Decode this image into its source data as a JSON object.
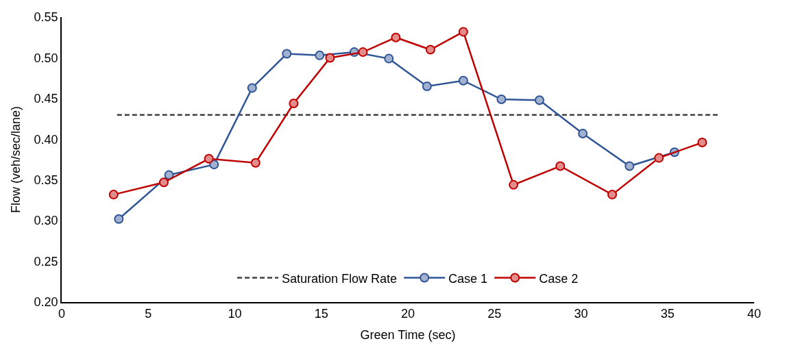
{
  "chart_data": {
    "type": "line",
    "xlabel": "Green Time (sec)",
    "ylabel": "Flow (veh/sec/lane)",
    "xlim": [
      0,
      40
    ],
    "xticks": [
      0,
      5,
      10,
      15,
      20,
      25,
      30,
      35,
      40
    ],
    "ylim": [
      0.2,
      0.55
    ],
    "yticks": [
      {
        "value": 0.2,
        "label": "0.20"
      },
      {
        "value": 0.25,
        "label": "0.25"
      },
      {
        "value": 0.3,
        "label": "0.30"
      },
      {
        "value": 0.35,
        "label": "0.35"
      },
      {
        "value": 0.4,
        "label": "0.40"
      },
      {
        "value": 0.45,
        "label": "0.45"
      },
      {
        "value": 0.5,
        "label": "0.50"
      },
      {
        "value": 0.55,
        "label": "0.55"
      }
    ],
    "grid": false,
    "legend": "bottom",
    "series": [
      {
        "name": "Saturation Flow Rate",
        "color": "#404040",
        "line_style": "dashed",
        "marker": "none",
        "x": [
          3.2,
          38
        ],
        "values": [
          0.43,
          0.43
        ]
      },
      {
        "name": "Case 1",
        "color": "#2f5597",
        "marker": "circle",
        "line_style": "solid",
        "x": [
          3.3,
          6.2,
          8.8,
          11.0,
          13.0,
          14.9,
          16.9,
          18.9,
          21.1,
          23.2,
          25.4,
          27.6,
          30.1,
          32.8,
          35.4
        ],
        "values": [
          0.302,
          0.356,
          0.369,
          0.463,
          0.505,
          0.503,
          0.507,
          0.499,
          0.465,
          0.472,
          0.449,
          0.448,
          0.407,
          0.367,
          0.384
        ]
      },
      {
        "name": "Case 2",
        "color": "#c00000",
        "marker": "circle",
        "line_style": "solid",
        "x": [
          3.0,
          5.9,
          8.5,
          11.2,
          13.4,
          15.5,
          17.4,
          19.3,
          21.3,
          23.2,
          26.1,
          28.8,
          31.8,
          34.5,
          37.0
        ],
        "values": [
          0.332,
          0.347,
          0.376,
          0.371,
          0.444,
          0.5,
          0.507,
          0.525,
          0.51,
          0.532,
          0.344,
          0.367,
          0.332,
          0.377,
          0.396
        ]
      }
    ]
  }
}
